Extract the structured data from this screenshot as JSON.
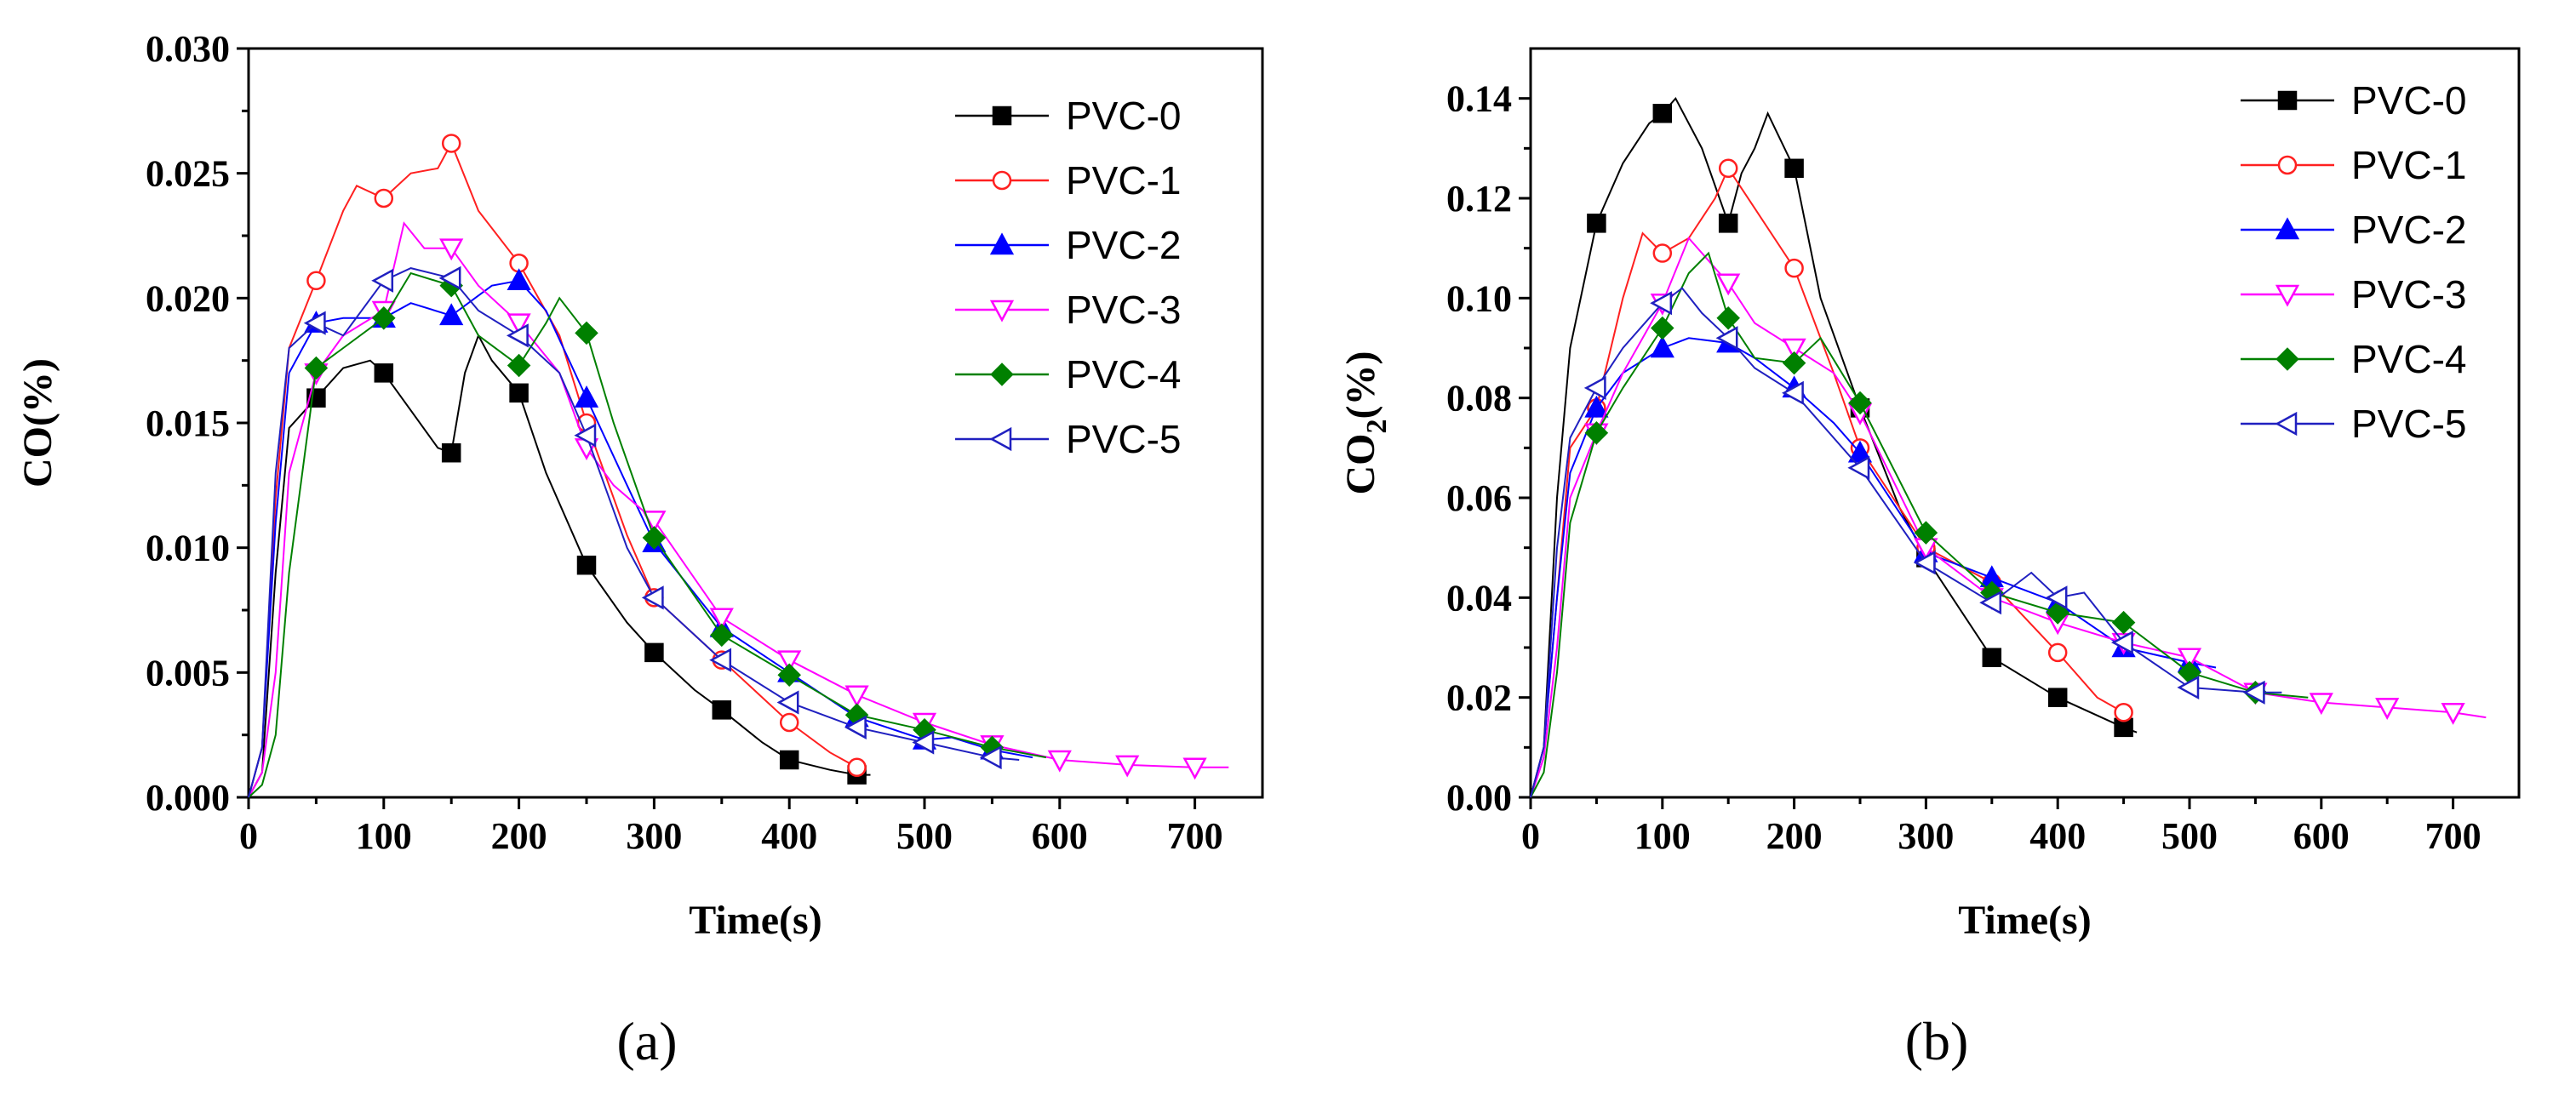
{
  "chart_data": [
    {
      "type": "line",
      "panel_label": "(a)",
      "xlabel": "Time(s)",
      "ylabel": "CO(%)",
      "ylabel_sub": "",
      "ylabel_suffix": "",
      "xlim": [
        0,
        750
      ],
      "ylim": [
        0,
        0.03
      ],
      "xticks": [
        "0",
        "100",
        "200",
        "300",
        "400",
        "500",
        "600",
        "700"
      ],
      "yticks": [
        "0.000",
        "0.005",
        "0.010",
        "0.015",
        "0.020",
        "0.025",
        "0.030"
      ],
      "legend_position": "top-right",
      "series": [
        {
          "name": "PVC-0",
          "color": "#000000",
          "marker": "square",
          "x": [
            0,
            10,
            20,
            30,
            50,
            70,
            90,
            100,
            120,
            140,
            150,
            160,
            170,
            180,
            200,
            220,
            250,
            280,
            300,
            330,
            350,
            380,
            400,
            430,
            450,
            460
          ],
          "y": [
            0,
            0.001,
            0.009,
            0.0148,
            0.016,
            0.0172,
            0.0175,
            0.017,
            0.0155,
            0.014,
            0.0138,
            0.017,
            0.0185,
            0.0175,
            0.0162,
            0.013,
            0.0093,
            0.007,
            0.0058,
            0.0043,
            0.0035,
            0.0022,
            0.0015,
            0.0011,
            0.0009,
            0.0009
          ]
        },
        {
          "name": "PVC-1",
          "color": "#ff2020",
          "marker": "circle",
          "x": [
            0,
            10,
            20,
            30,
            50,
            70,
            80,
            100,
            120,
            140,
            150,
            170,
            200,
            230,
            250,
            280,
            300,
            350,
            400,
            430,
            450,
            455
          ],
          "y": [
            0,
            0.002,
            0.012,
            0.018,
            0.0207,
            0.0235,
            0.0245,
            0.024,
            0.025,
            0.0252,
            0.0262,
            0.0235,
            0.0214,
            0.0185,
            0.015,
            0.0105,
            0.008,
            0.0055,
            0.003,
            0.0018,
            0.0012,
            0.0011
          ]
        },
        {
          "name": "PVC-2",
          "color": "#0000ff",
          "marker": "triangle-up",
          "x": [
            0,
            10,
            20,
            30,
            50,
            70,
            100,
            120,
            150,
            180,
            200,
            220,
            250,
            280,
            300,
            350,
            400,
            450,
            500,
            520,
            550,
            580
          ],
          "y": [
            0,
            0.002,
            0.011,
            0.017,
            0.019,
            0.0192,
            0.0192,
            0.0198,
            0.0193,
            0.0205,
            0.0207,
            0.0195,
            0.016,
            0.0125,
            0.0102,
            0.0068,
            0.005,
            0.0032,
            0.0023,
            0.0024,
            0.0019,
            0.0016
          ]
        },
        {
          "name": "PVC-3",
          "color": "#ff00ff",
          "marker": "triangle-down",
          "x": [
            0,
            10,
            20,
            30,
            50,
            70,
            100,
            115,
            130,
            150,
            170,
            200,
            230,
            250,
            270,
            300,
            350,
            400,
            450,
            500,
            550,
            600,
            650,
            700,
            725
          ],
          "y": [
            0,
            0.001,
            0.005,
            0.013,
            0.017,
            0.0185,
            0.0195,
            0.023,
            0.022,
            0.022,
            0.0205,
            0.019,
            0.017,
            0.014,
            0.0125,
            0.0111,
            0.0072,
            0.0055,
            0.0041,
            0.003,
            0.0021,
            0.0015,
            0.0013,
            0.0012,
            0.0012
          ]
        },
        {
          "name": "PVC-4",
          "color": "#008000",
          "marker": "diamond",
          "x": [
            0,
            10,
            20,
            30,
            50,
            70,
            100,
            120,
            150,
            170,
            200,
            220,
            230,
            250,
            270,
            300,
            350,
            400,
            450,
            500,
            550,
            590
          ],
          "y": [
            0,
            0.0005,
            0.0025,
            0.009,
            0.0172,
            0.018,
            0.0192,
            0.021,
            0.0205,
            0.0185,
            0.0173,
            0.019,
            0.02,
            0.0186,
            0.015,
            0.0104,
            0.0065,
            0.0049,
            0.0033,
            0.0027,
            0.002,
            0.0016
          ]
        },
        {
          "name": "PVC-5",
          "color": "#2020c0",
          "marker": "triangle-left",
          "x": [
            0,
            10,
            20,
            30,
            50,
            70,
            100,
            120,
            150,
            170,
            200,
            230,
            250,
            280,
            300,
            350,
            400,
            450,
            500,
            550,
            570
          ],
          "y": [
            0,
            0.002,
            0.013,
            0.018,
            0.019,
            0.0185,
            0.0207,
            0.0212,
            0.0208,
            0.0195,
            0.0185,
            0.017,
            0.0145,
            0.01,
            0.008,
            0.0055,
            0.0038,
            0.0028,
            0.0022,
            0.0016,
            0.0015
          ]
        }
      ]
    },
    {
      "type": "line",
      "panel_label": "(b)",
      "xlabel": "Time(s)",
      "ylabel": "CO",
      "ylabel_sub": "2",
      "ylabel_suffix": "(%)",
      "xlim": [
        0,
        750
      ],
      "ylim": [
        0,
        0.15
      ],
      "xticks": [
        "0",
        "100",
        "200",
        "300",
        "400",
        "500",
        "600",
        "700"
      ],
      "yticks": [
        "0.00",
        "0.02",
        "0.04",
        "0.06",
        "0.08",
        "0.10",
        "0.12",
        "0.14"
      ],
      "legend_position": "top-right",
      "series": [
        {
          "name": "PVC-0",
          "color": "#000000",
          "marker": "square",
          "x": [
            0,
            10,
            20,
            30,
            50,
            70,
            90,
            100,
            110,
            130,
            150,
            160,
            170,
            180,
            200,
            220,
            250,
            280,
            300,
            350,
            400,
            450,
            460
          ],
          "y": [
            0,
            0.01,
            0.06,
            0.09,
            0.115,
            0.127,
            0.135,
            0.137,
            0.14,
            0.13,
            0.115,
            0.125,
            0.13,
            0.137,
            0.126,
            0.1,
            0.078,
            0.058,
            0.048,
            0.028,
            0.02,
            0.014,
            0.013
          ]
        },
        {
          "name": "PVC-1",
          "color": "#ff2020",
          "marker": "circle",
          "x": [
            0,
            10,
            20,
            30,
            50,
            70,
            85,
            100,
            120,
            140,
            150,
            170,
            200,
            230,
            250,
            300,
            350,
            400,
            430,
            450,
            455
          ],
          "y": [
            0,
            0.01,
            0.04,
            0.07,
            0.078,
            0.1,
            0.113,
            0.109,
            0.112,
            0.12,
            0.126,
            0.118,
            0.106,
            0.085,
            0.07,
            0.05,
            0.043,
            0.029,
            0.02,
            0.017,
            0.017
          ]
        },
        {
          "name": "PVC-2",
          "color": "#0000ff",
          "marker": "triangle-up",
          "x": [
            0,
            10,
            20,
            30,
            50,
            70,
            100,
            120,
            150,
            170,
            200,
            230,
            250,
            300,
            350,
            400,
            450,
            500,
            520
          ],
          "y": [
            0,
            0.01,
            0.04,
            0.065,
            0.078,
            0.085,
            0.09,
            0.092,
            0.091,
            0.088,
            0.082,
            0.075,
            0.069,
            0.049,
            0.044,
            0.039,
            0.03,
            0.027,
            0.026
          ]
        },
        {
          "name": "PVC-3",
          "color": "#ff00ff",
          "marker": "triangle-down",
          "x": [
            0,
            10,
            20,
            30,
            50,
            70,
            100,
            120,
            150,
            170,
            200,
            230,
            250,
            300,
            350,
            400,
            450,
            500,
            550,
            600,
            650,
            700,
            725
          ],
          "y": [
            0,
            0.008,
            0.03,
            0.06,
            0.073,
            0.085,
            0.099,
            0.112,
            0.103,
            0.095,
            0.09,
            0.085,
            0.077,
            0.05,
            0.04,
            0.035,
            0.031,
            0.028,
            0.021,
            0.019,
            0.018,
            0.017,
            0.016
          ]
        },
        {
          "name": "PVC-4",
          "color": "#008000",
          "marker": "diamond",
          "x": [
            0,
            10,
            20,
            30,
            50,
            70,
            100,
            120,
            135,
            150,
            170,
            200,
            220,
            250,
            300,
            350,
            400,
            450,
            500,
            550,
            590
          ],
          "y": [
            0,
            0.005,
            0.025,
            0.055,
            0.073,
            0.082,
            0.094,
            0.105,
            0.109,
            0.096,
            0.088,
            0.087,
            0.092,
            0.079,
            0.053,
            0.041,
            0.037,
            0.035,
            0.025,
            0.021,
            0.02
          ]
        },
        {
          "name": "PVC-5",
          "color": "#2020c0",
          "marker": "triangle-left",
          "x": [
            0,
            10,
            20,
            30,
            50,
            70,
            100,
            115,
            130,
            150,
            170,
            200,
            250,
            300,
            350,
            380,
            400,
            420,
            450,
            500,
            550,
            570
          ],
          "y": [
            0,
            0.01,
            0.05,
            0.072,
            0.082,
            0.09,
            0.099,
            0.102,
            0.097,
            0.092,
            0.086,
            0.081,
            0.066,
            0.047,
            0.039,
            0.045,
            0.04,
            0.041,
            0.031,
            0.022,
            0.021,
            0.021
          ]
        }
      ]
    }
  ]
}
